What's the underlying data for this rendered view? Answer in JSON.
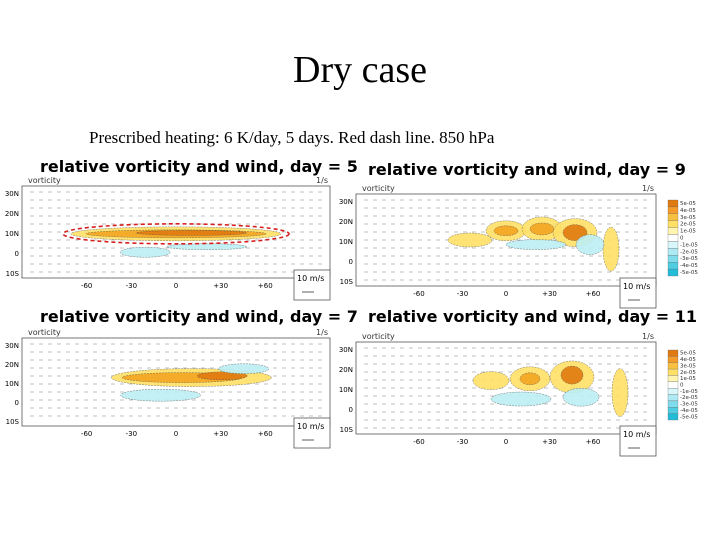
{
  "title": "Dry case",
  "subtitle": "Prescribed heating: 6 K/day, 5 days. Red dash line. 850 hPa",
  "panels": [
    {
      "title": "relative vorticity and wind, day = 5",
      "variable": "vorticity",
      "unit": "1/s",
      "lat_labels": [
        "30N",
        "20N",
        "10N",
        "0",
        "10S"
      ],
      "lon_labels": [
        "-60",
        "-30",
        "0",
        "+30",
        "+60"
      ],
      "ref_vector": "10 m/s"
    },
    {
      "title": "relative vorticity and wind, day = 9",
      "variable": "vorticity",
      "unit": "1/s",
      "lat_labels": [
        "30N",
        "20N",
        "10N",
        "0",
        "10S"
      ],
      "lon_labels": [
        "-60",
        "-30",
        "0",
        "+30",
        "+60"
      ],
      "ref_vector": "10 m/s",
      "colorbar_labels": [
        "5e-05",
        "4e-05",
        "3e-05",
        "2e-05",
        "1e-05",
        "0",
        "-1e-05",
        "-2e-05",
        "-3e-05",
        "-4e-05",
        "-5e-05"
      ]
    },
    {
      "title": "relative vorticity and wind, day = 7",
      "variable": "vorticity",
      "unit": "1/s",
      "lat_labels": [
        "30N",
        "20N",
        "10N",
        "0",
        "10S"
      ],
      "lon_labels": [
        "-60",
        "-30",
        "0",
        "+30",
        "+60"
      ],
      "ref_vector": "10 m/s"
    },
    {
      "title": "relative vorticity and wind, day = 11",
      "variable": "vorticity",
      "unit": "1/s",
      "lat_labels": [
        "30N",
        "20N",
        "10N",
        "0",
        "10S"
      ],
      "lon_labels": [
        "-60",
        "-30",
        "0",
        "+30",
        "+60"
      ],
      "ref_vector": "10 m/s",
      "colorbar_labels": [
        "5e-05",
        "4e-05",
        "3e-05",
        "2e-05",
        "1e-05",
        "0",
        "-1e-05",
        "-2e-05",
        "-3e-05",
        "-4e-05",
        "-5e-05"
      ]
    }
  ]
}
